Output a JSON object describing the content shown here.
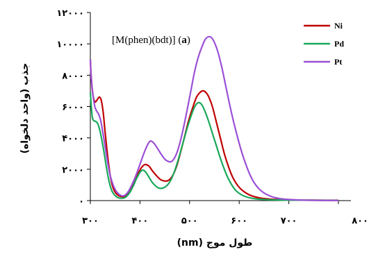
{
  "chart_data": {
    "type": "line",
    "xlabel": "طول موج (nm)",
    "ylabel": "جذب (واحد دلخواه)",
    "annotation": {
      "prefix": "[M(phen)(bdt)] (",
      "bold": "a",
      "suffix": ")"
    },
    "xlim": [
      300,
      800
    ],
    "ylim": [
      0,
      12000
    ],
    "x_ticks": [
      300,
      400,
      500,
      600,
      700,
      800
    ],
    "x_tick_labels": [
      "۳۰۰",
      "۴۰۰",
      "۵۰۰",
      "۶۰۰",
      "۷۰۰",
      "۸۰۰"
    ],
    "y_ticks": [
      0,
      2000,
      4000,
      6000,
      8000,
      10000,
      12000
    ],
    "y_tick_labels": [
      "۰",
      "۲۰۰۰",
      "۴۰۰۰",
      "۶۰۰۰",
      "۸۰۰۰",
      "۱۰۰۰۰",
      "۱۲۰۰۰"
    ],
    "grid": false,
    "legend_position": "top-right",
    "series": [
      {
        "name": "Ni",
        "color": "#c00000",
        "points": [
          [
            300,
            9000
          ],
          [
            302,
            7800
          ],
          [
            305,
            6800
          ],
          [
            309,
            6300
          ],
          [
            313,
            6400
          ],
          [
            318,
            6600
          ],
          [
            322,
            6400
          ],
          [
            326,
            5600
          ],
          [
            330,
            4300
          ],
          [
            335,
            2800
          ],
          [
            340,
            1600
          ],
          [
            346,
            800
          ],
          [
            352,
            450
          ],
          [
            358,
            300
          ],
          [
            365,
            250
          ],
          [
            372,
            300
          ],
          [
            380,
            600
          ],
          [
            388,
            1100
          ],
          [
            396,
            1700
          ],
          [
            403,
            2100
          ],
          [
            410,
            2300
          ],
          [
            418,
            2200
          ],
          [
            425,
            1900
          ],
          [
            433,
            1600
          ],
          [
            441,
            1350
          ],
          [
            450,
            1250
          ],
          [
            458,
            1300
          ],
          [
            466,
            1600
          ],
          [
            474,
            2200
          ],
          [
            482,
            3100
          ],
          [
            490,
            4100
          ],
          [
            498,
            5100
          ],
          [
            506,
            5900
          ],
          [
            514,
            6600
          ],
          [
            521,
            6900
          ],
          [
            527,
            7000
          ],
          [
            533,
            6900
          ],
          [
            539,
            6600
          ],
          [
            546,
            6000
          ],
          [
            554,
            5000
          ],
          [
            562,
            4000
          ],
          [
            570,
            3000
          ],
          [
            578,
            2200
          ],
          [
            586,
            1550
          ],
          [
            594,
            1100
          ],
          [
            602,
            780
          ],
          [
            612,
            520
          ],
          [
            624,
            320
          ],
          [
            640,
            180
          ],
          [
            660,
            100
          ],
          [
            685,
            60
          ],
          [
            710,
            40
          ],
          [
            750,
            25
          ],
          [
            800,
            20
          ]
        ]
      },
      {
        "name": "Pd",
        "color": "#1aa85a",
        "points": [
          [
            300,
            6900
          ],
          [
            302,
            6000
          ],
          [
            304,
            5300
          ],
          [
            307,
            5100
          ],
          [
            311,
            5050
          ],
          [
            315,
            4900
          ],
          [
            319,
            4500
          ],
          [
            323,
            3900
          ],
          [
            328,
            3000
          ],
          [
            333,
            2000
          ],
          [
            338,
            1200
          ],
          [
            343,
            650
          ],
          [
            349,
            350
          ],
          [
            355,
            200
          ],
          [
            362,
            150
          ],
          [
            370,
            200
          ],
          [
            378,
            450
          ],
          [
            386,
            900
          ],
          [
            393,
            1400
          ],
          [
            400,
            1800
          ],
          [
            406,
            1950
          ],
          [
            412,
            1800
          ],
          [
            418,
            1500
          ],
          [
            424,
            1200
          ],
          [
            431,
            950
          ],
          [
            438,
            800
          ],
          [
            446,
            800
          ],
          [
            454,
            950
          ],
          [
            462,
            1300
          ],
          [
            470,
            1900
          ],
          [
            478,
            2700
          ],
          [
            486,
            3600
          ],
          [
            494,
            4500
          ],
          [
            502,
            5300
          ],
          [
            509,
            5900
          ],
          [
            515,
            6200
          ],
          [
            520,
            6250
          ],
          [
            525,
            6100
          ],
          [
            531,
            5700
          ],
          [
            538,
            5100
          ],
          [
            546,
            4300
          ],
          [
            554,
            3500
          ],
          [
            562,
            2700
          ],
          [
            570,
            2000
          ],
          [
            578,
            1400
          ],
          [
            586,
            950
          ],
          [
            594,
            620
          ],
          [
            604,
            380
          ],
          [
            616,
            220
          ],
          [
            630,
            130
          ],
          [
            650,
            70
          ],
          [
            680,
            40
          ],
          [
            720,
            25
          ],
          [
            800,
            15
          ]
        ]
      },
      {
        "name": "Pt",
        "color": "#9b4fd6",
        "points": [
          [
            300,
            9000
          ],
          [
            302,
            7800
          ],
          [
            305,
            6800
          ],
          [
            309,
            6000
          ],
          [
            313,
            5700
          ],
          [
            317,
            5500
          ],
          [
            321,
            5100
          ],
          [
            325,
            4400
          ],
          [
            330,
            3400
          ],
          [
            335,
            2400
          ],
          [
            340,
            1600
          ],
          [
            346,
            1000
          ],
          [
            352,
            600
          ],
          [
            358,
            400
          ],
          [
            364,
            300
          ],
          [
            370,
            350
          ],
          [
            377,
            600
          ],
          [
            385,
            1100
          ],
          [
            393,
            1700
          ],
          [
            401,
            2400
          ],
          [
            409,
            3100
          ],
          [
            416,
            3600
          ],
          [
            421,
            3800
          ],
          [
            427,
            3700
          ],
          [
            434,
            3400
          ],
          [
            442,
            3000
          ],
          [
            450,
            2650
          ],
          [
            457,
            2500
          ],
          [
            464,
            2500
          ],
          [
            471,
            2800
          ],
          [
            478,
            3400
          ],
          [
            486,
            4400
          ],
          [
            494,
            5600
          ],
          [
            502,
            6900
          ],
          [
            510,
            8200
          ],
          [
            518,
            9200
          ],
          [
            526,
            9900
          ],
          [
            532,
            10300
          ],
          [
            538,
            10450
          ],
          [
            544,
            10400
          ],
          [
            550,
            10100
          ],
          [
            557,
            9500
          ],
          [
            565,
            8500
          ],
          [
            573,
            7300
          ],
          [
            581,
            6100
          ],
          [
            589,
            5000
          ],
          [
            597,
            4000
          ],
          [
            605,
            3100
          ],
          [
            613,
            2350
          ],
          [
            621,
            1700
          ],
          [
            630,
            1150
          ],
          [
            640,
            750
          ],
          [
            652,
            450
          ],
          [
            666,
            250
          ],
          [
            682,
            130
          ],
          [
            700,
            70
          ],
          [
            730,
            30
          ],
          [
            760,
            15
          ],
          [
            800,
            10
          ]
        ]
      }
    ]
  }
}
